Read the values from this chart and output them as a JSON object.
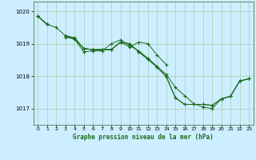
{
  "title": "Graphe pression niveau de la mer (hPa)",
  "background_color": "#cceeff",
  "grid_color": "#aaccaa",
  "line_color": "#1a6b1a",
  "marker_color": "#1a6b1a",
  "spine_color": "#336633",
  "xlim": [
    -0.5,
    23.5
  ],
  "ylim": [
    1016.5,
    1020.3
  ],
  "yticks": [
    1017,
    1018,
    1019,
    1020
  ],
  "xticks": [
    0,
    1,
    2,
    3,
    4,
    5,
    6,
    7,
    8,
    9,
    10,
    11,
    12,
    13,
    14,
    15,
    16,
    17,
    18,
    19,
    20,
    21,
    22,
    23
  ],
  "series": [
    [
      1019.85,
      1019.6,
      null,
      1019.25,
      1019.15,
      1018.85,
      1018.82,
      1018.82,
      1018.82,
      1019.05,
      1018.9,
      1019.05,
      1019.0,
      1018.65,
      1018.35,
      null,
      null,
      null,
      null,
      null,
      null,
      null,
      null,
      null
    ],
    [
      1019.85,
      1019.6,
      null,
      1019.2,
      1019.15,
      1018.75,
      1018.78,
      1018.78,
      1019.0,
      1019.12,
      1018.95,
      1018.78,
      1018.55,
      1018.3,
      1018.05,
      1017.65,
      1017.4,
      1017.15,
      1017.05,
      1017.0,
      1017.3,
      1017.38,
      1017.85,
      1017.92
    ],
    [
      1019.85,
      1019.6,
      null,
      1019.25,
      1019.18,
      1018.85,
      1018.82,
      1018.82,
      1018.82,
      1019.05,
      1019.0,
      1018.75,
      1018.52,
      1018.28,
      1017.98,
      1017.33,
      1017.13,
      1017.13,
      1017.13,
      1017.1,
      1017.3,
      1017.38,
      1017.85,
      1017.92
    ],
    [
      1019.85,
      1019.6,
      1019.5,
      1019.25,
      1019.18,
      1018.85,
      1018.82,
      1018.82,
      1018.82,
      1019.05,
      1019.0,
      1018.75,
      1018.52,
      1018.28,
      1017.98,
      1017.33,
      1017.13,
      1017.13,
      1017.13,
      1017.1,
      1017.3,
      1017.38,
      1017.85,
      1017.92
    ]
  ]
}
